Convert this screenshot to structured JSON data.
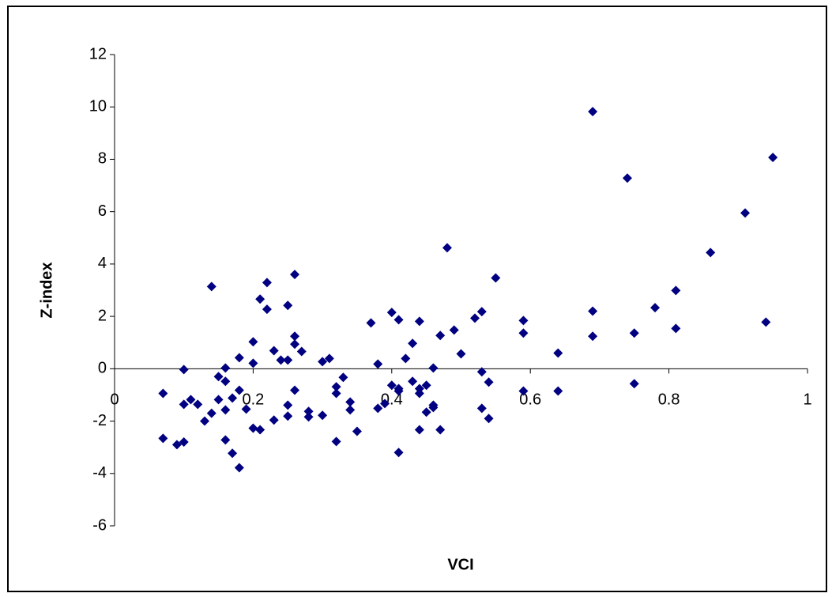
{
  "chart_data": {
    "type": "scatter",
    "x_label": "VCI",
    "y_label": "Z-index",
    "color": "#000080",
    "marker": "diamond",
    "xlim": [
      0,
      1
    ],
    "xticks": [
      0,
      0.2,
      0.4,
      0.6,
      0.8,
      1
    ],
    "ylim": [
      -6,
      12
    ],
    "yticks": [
      -6,
      -4,
      -2,
      0,
      2,
      4,
      6,
      8,
      10,
      12
    ],
    "x": [
      0.07,
      0.07,
      0.09,
      0.1,
      0.1,
      0.1,
      0.11,
      0.12,
      0.13,
      0.14,
      0.14,
      0.15,
      0.15,
      0.16,
      0.16,
      0.16,
      0.16,
      0.17,
      0.17,
      0.18,
      0.18,
      0.18,
      0.19,
      0.2,
      0.2,
      0.2,
      0.21,
      0.21,
      0.22,
      0.22,
      0.23,
      0.23,
      0.24,
      0.25,
      0.25,
      0.25,
      0.25,
      0.26,
      0.26,
      0.26,
      0.26,
      0.27,
      0.28,
      0.28,
      0.3,
      0.3,
      0.31,
      0.32,
      0.32,
      0.32,
      0.33,
      0.34,
      0.34,
      0.35,
      0.37,
      0.38,
      0.38,
      0.39,
      0.4,
      0.4,
      0.41,
      0.41,
      0.41,
      0.41,
      0.42,
      0.43,
      0.43,
      0.44,
      0.44,
      0.44,
      0.44,
      0.45,
      0.45,
      0.46,
      0.46,
      0.46,
      0.47,
      0.47,
      0.48,
      0.49,
      0.5,
      0.52,
      0.53,
      0.53,
      0.53,
      0.54,
      0.54,
      0.55,
      0.59,
      0.59,
      0.59,
      0.64,
      0.64,
      0.69,
      0.69,
      0.69,
      0.74,
      0.75,
      0.75,
      0.78,
      0.81,
      0.81,
      0.86,
      0.91,
      0.94,
      0.95
    ],
    "values": [
      -0.94,
      -2.66,
      -2.9,
      -0.03,
      -1.36,
      -2.8,
      -1.18,
      -1.36,
      -2.0,
      3.14,
      -1.7,
      -1.18,
      -0.3,
      -0.48,
      0.03,
      -2.72,
      -1.57,
      -3.23,
      -1.12,
      -3.78,
      -0.82,
      0.42,
      -1.54,
      1.03,
      0.21,
      -2.27,
      2.66,
      -2.33,
      2.27,
      3.29,
      0.69,
      -1.96,
      0.33,
      -1.39,
      0.33,
      -1.81,
      2.42,
      0.94,
      3.6,
      -0.82,
      1.24,
      0.66,
      -1.84,
      -1.63,
      0.27,
      -1.78,
      0.39,
      -0.69,
      -0.94,
      -2.78,
      -0.33,
      -1.27,
      -1.57,
      -2.39,
      1.75,
      0.18,
      -1.51,
      -1.33,
      -0.63,
      2.15,
      -0.85,
      -0.76,
      1.87,
      -3.2,
      0.39,
      -0.48,
      0.97,
      -0.76,
      1.81,
      -2.33,
      -0.94,
      -0.63,
      -1.66,
      -1.48,
      0.03,
      -1.39,
      1.27,
      -2.33,
      4.62,
      1.48,
      0.57,
      1.93,
      2.18,
      -0.12,
      -1.51,
      -0.51,
      -1.9,
      3.47,
      1.36,
      1.84,
      -0.85,
      0.6,
      -0.85,
      1.24,
      2.2,
      9.82,
      7.28,
      -0.57,
      1.36,
      2.33,
      2.99,
      1.54,
      4.44,
      5.95,
      1.78,
      8.07
    ]
  }
}
